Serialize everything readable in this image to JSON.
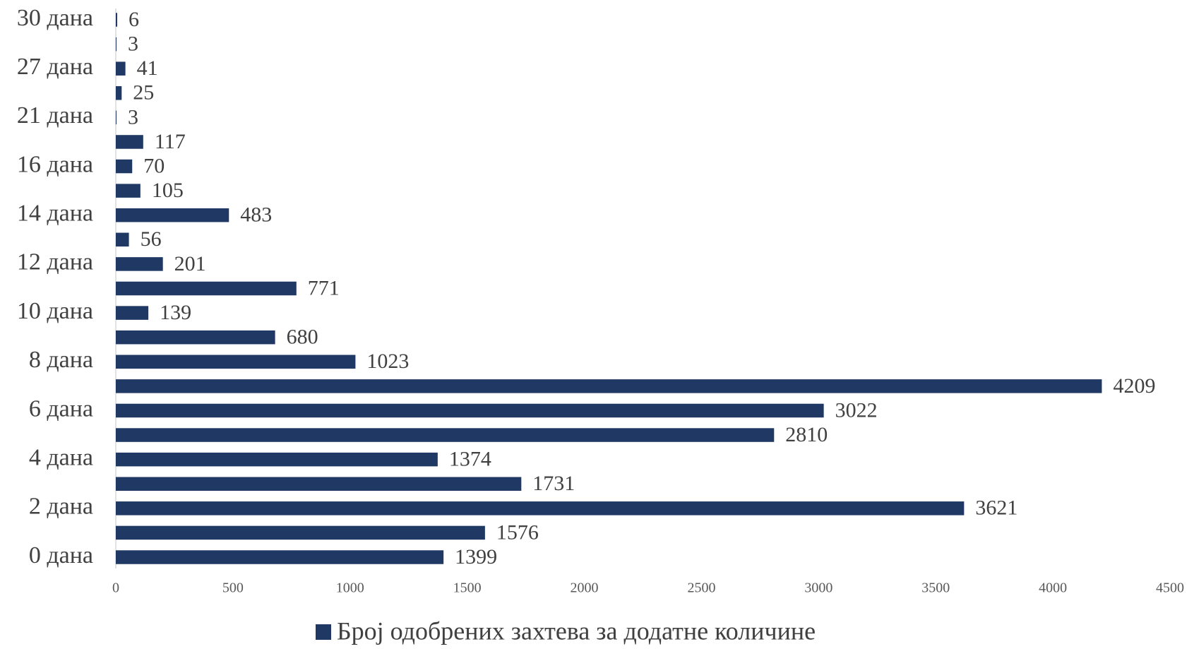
{
  "chart_data": {
    "type": "bar",
    "orientation": "horizontal",
    "categories": [
      "0 дана",
      null,
      "2 дана",
      null,
      "4 дана",
      null,
      "6 дана",
      null,
      "8 дана",
      null,
      "10 дана",
      null,
      "12 дана",
      null,
      "14 дана",
      null,
      "16 дана",
      null,
      "21 дана",
      null,
      "27 дана",
      null,
      "30 дана"
    ],
    "series": [
      {
        "name": "Број одобрених захтева за додатне количине",
        "color": "#1f3864",
        "values": [
          1399,
          1576,
          3621,
          1731,
          1374,
          2810,
          3022,
          4209,
          1023,
          680,
          139,
          771,
          201,
          56,
          483,
          105,
          70,
          117,
          3,
          25,
          41,
          3,
          6
        ]
      }
    ],
    "xlim": [
      0,
      4500
    ],
    "xticks": [
      0,
      500,
      1000,
      1500,
      2000,
      2500,
      3000,
      3500,
      4000,
      4500
    ],
    "legend": "bottom"
  }
}
